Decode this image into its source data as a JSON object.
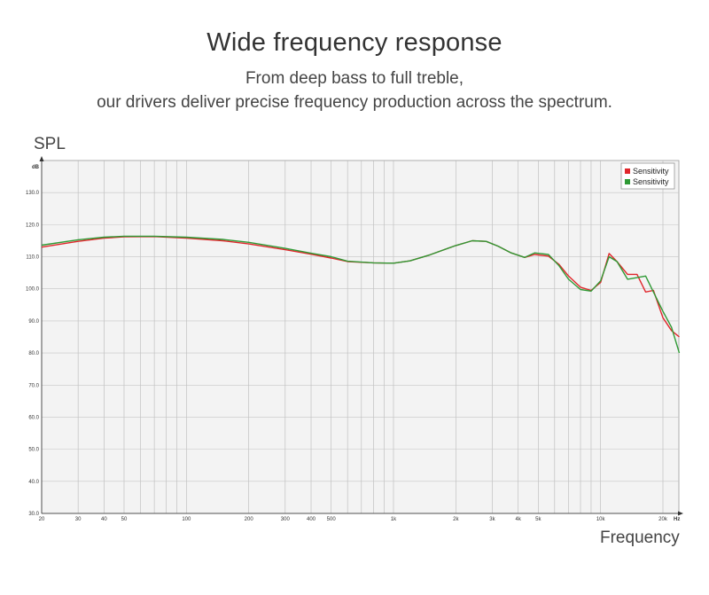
{
  "header": {
    "title": "Wide frequency response",
    "subtitle_line1": "From deep bass to full treble,",
    "subtitle_line2": "our drivers deliver precise frequency production across the spectrum."
  },
  "axis_words": {
    "y": "SPL",
    "x": "Frequency"
  },
  "chart_data": {
    "type": "line",
    "title": "",
    "ylabel": "SPL",
    "xlabel": "Frequency",
    "y_unit": "dB",
    "x_unit": "Hz",
    "x_scale": "log",
    "xlim": [
      20,
      20000
    ],
    "ylim": [
      30,
      140
    ],
    "grid": true,
    "legend_position": "top-right",
    "y_ticks": [
      30,
      40,
      50,
      60,
      70,
      80,
      90,
      100,
      110,
      120,
      130
    ],
    "y_tick_labels": [
      "30.0",
      "40.0",
      "50.0",
      "60.0",
      "70.0",
      "80.0",
      "90.0",
      "100.0",
      "110.0",
      "120.0",
      "130.0"
    ],
    "x_ticks": [
      20,
      30,
      40,
      50,
      100,
      200,
      300,
      400,
      500,
      1000,
      2000,
      3000,
      4000,
      5000,
      10000,
      20000
    ],
    "x_tick_labels": [
      "20",
      "30",
      "40",
      "50",
      "100",
      "200",
      "300",
      "400",
      "500",
      "1k",
      "2k",
      "3k",
      "4k",
      "5k",
      "10k",
      "20k"
    ],
    "series": [
      {
        "name": "Sensitivity",
        "color": "#e0262b",
        "points": [
          [
            20,
            113.0
          ],
          [
            30,
            114.8
          ],
          [
            40,
            115.8
          ],
          [
            50,
            116.2
          ],
          [
            70,
            116.3
          ],
          [
            100,
            115.8
          ],
          [
            150,
            115.0
          ],
          [
            200,
            114.0
          ],
          [
            300,
            112.2
          ],
          [
            400,
            110.8
          ],
          [
            500,
            109.6
          ],
          [
            600,
            108.5
          ],
          [
            800,
            108.1
          ],
          [
            1000,
            108.0
          ],
          [
            1200,
            108.7
          ],
          [
            1500,
            110.6
          ],
          [
            2000,
            113.5
          ],
          [
            2400,
            115.0
          ],
          [
            2800,
            114.8
          ],
          [
            3200,
            113.3
          ],
          [
            3700,
            111.2
          ],
          [
            4300,
            109.8
          ],
          [
            4800,
            110.7
          ],
          [
            5600,
            110.2
          ],
          [
            6300,
            107.6
          ],
          [
            7000,
            104.0
          ],
          [
            8000,
            100.5
          ],
          [
            9000,
            99.5
          ],
          [
            10000,
            102.0
          ],
          [
            11000,
            111.0
          ],
          [
            12000,
            108.5
          ],
          [
            13500,
            104.5
          ],
          [
            15000,
            104.5
          ],
          [
            16500,
            99.0
          ],
          [
            18000,
            99.5
          ],
          [
            20000,
            91.0
          ],
          [
            22000,
            87.0
          ],
          [
            24000,
            85.0
          ]
        ]
      },
      {
        "name": "Sensitivity",
        "color": "#2f9a35",
        "points": [
          [
            20,
            113.6
          ],
          [
            30,
            115.3
          ],
          [
            40,
            116.1
          ],
          [
            50,
            116.4
          ],
          [
            70,
            116.4
          ],
          [
            100,
            116.1
          ],
          [
            150,
            115.4
          ],
          [
            200,
            114.5
          ],
          [
            300,
            112.6
          ],
          [
            400,
            111.1
          ],
          [
            500,
            110.0
          ],
          [
            600,
            108.6
          ],
          [
            800,
            108.1
          ],
          [
            1000,
            108.0
          ],
          [
            1200,
            108.7
          ],
          [
            1500,
            110.6
          ],
          [
            2000,
            113.5
          ],
          [
            2400,
            115.0
          ],
          [
            2800,
            114.8
          ],
          [
            3200,
            113.3
          ],
          [
            3700,
            111.2
          ],
          [
            4300,
            109.8
          ],
          [
            4800,
            111.2
          ],
          [
            5600,
            110.7
          ],
          [
            6300,
            107.2
          ],
          [
            7000,
            103.0
          ],
          [
            8000,
            99.8
          ],
          [
            9000,
            99.3
          ],
          [
            10000,
            102.5
          ],
          [
            11000,
            110.0
          ],
          [
            12000,
            108.5
          ],
          [
            13500,
            103.0
          ],
          [
            15000,
            103.5
          ],
          [
            16500,
            104.0
          ],
          [
            18000,
            99.0
          ],
          [
            20000,
            93.0
          ],
          [
            22000,
            88.0
          ],
          [
            24000,
            80.0
          ]
        ]
      }
    ]
  }
}
